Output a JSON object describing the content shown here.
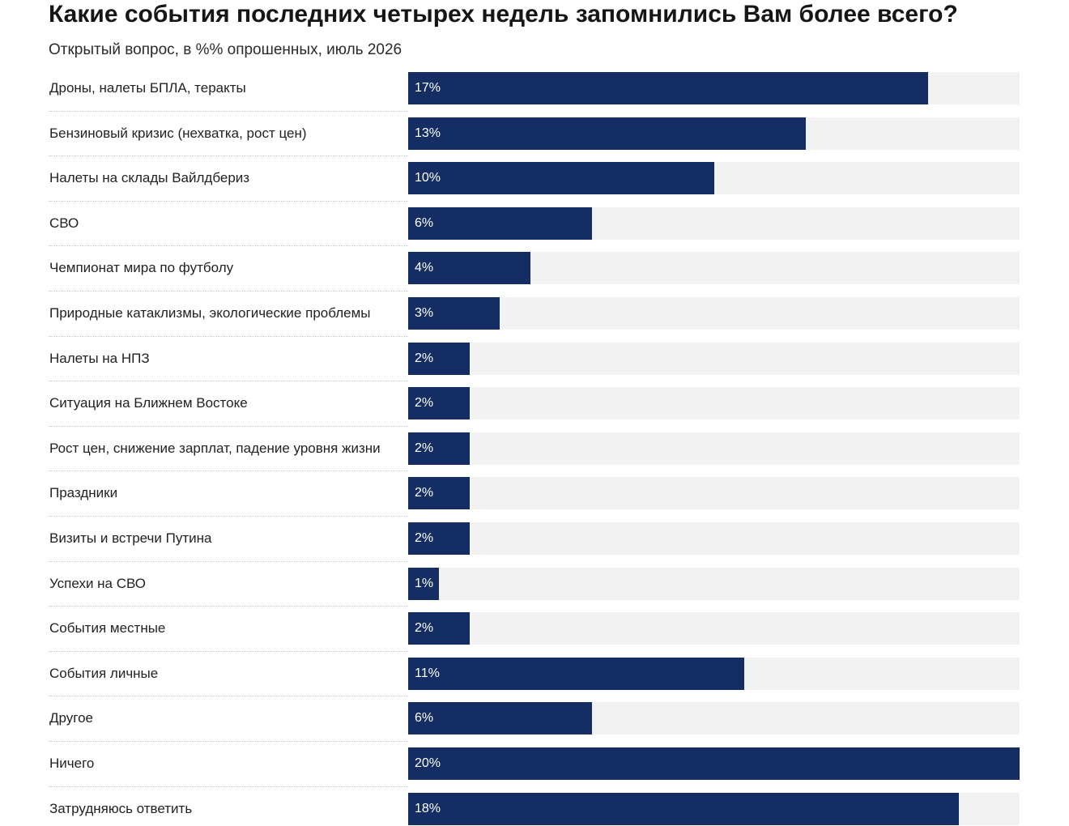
{
  "chart_data": {
    "type": "bar",
    "orientation": "horizontal",
    "title": "Какие события последних четырех недель запомнились Вам более всего?",
    "subtitle": "Открытый вопрос, в %% опрошенных, июль 2026",
    "unit": "%",
    "xlim": [
      0,
      20
    ],
    "grid": false,
    "categories": [
      "Дроны, налеты БПЛА, теракты",
      "Бензиновый кризис (нехватка, рост цен)",
      "Налеты на склады Вайлдбериз",
      "СВО",
      "Чемпионат мира по футболу",
      "Природные катаклизмы, экологические проблемы",
      "Налеты на НПЗ",
      "Ситуация на Ближнем Востоке",
      "Рост цен, снижение зарплат, падение уровня жизни",
      "Праздники",
      "Визиты и встречи Путина",
      "Успехи на СВО",
      "События местные",
      "События личные",
      "Другое",
      "Ничего",
      "Затрудняюсь ответить"
    ],
    "values": [
      17,
      13,
      10,
      6,
      4,
      3,
      2,
      2,
      2,
      2,
      2,
      1,
      2,
      11,
      6,
      20,
      18
    ],
    "value_labels": [
      "17%",
      "13%",
      "10%",
      "6%",
      "4%",
      "3%",
      "2%",
      "2%",
      "2%",
      "2%",
      "2%",
      "1%",
      "2%",
      "11%",
      "6%",
      "20%",
      "18%"
    ],
    "colors": {
      "bar": "#142e63",
      "track": "#f2f2f2",
      "value_text": "#ffffff",
      "separator": "#c8c8c8"
    }
  }
}
